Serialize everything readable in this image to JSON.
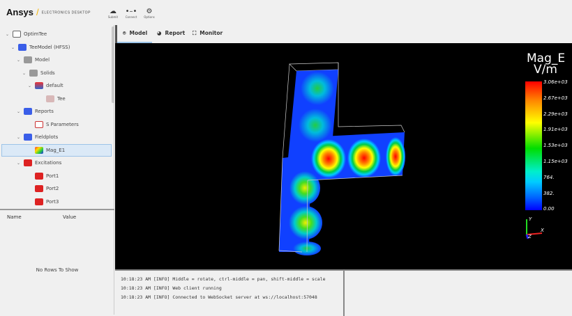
{
  "header": {
    "brand": "Ansys",
    "product": "ELECTRONICS DESKTOP",
    "toolbar": [
      {
        "label": "Submit",
        "icon": "cloud-icon"
      },
      {
        "label": "Connect",
        "icon": "connect-icon"
      },
      {
        "label": "Options",
        "icon": "gear-icon"
      }
    ]
  },
  "tree": [
    {
      "label": "OptimTee",
      "icon": "folder-icon",
      "expanded": true
    },
    {
      "label": "TeeModel (HFSS)",
      "icon": "hfss-icon",
      "expanded": true
    },
    {
      "label": "Model",
      "icon": "model-icon",
      "expanded": true
    },
    {
      "label": "Solids",
      "icon": "solids-icon",
      "expanded": true
    },
    {
      "label": "default",
      "icon": "material-icon",
      "expanded": true
    },
    {
      "label": "Tee",
      "icon": "solid-icon"
    },
    {
      "label": "Reports",
      "icon": "reports-icon",
      "expanded": true
    },
    {
      "label": "S Parameters",
      "icon": "chart-icon"
    },
    {
      "label": "Fieldplots",
      "icon": "fieldplots-icon",
      "expanded": true
    },
    {
      "label": "Mag_E1",
      "icon": "fieldplot-icon",
      "selected": true
    },
    {
      "label": "Excitations",
      "icon": "excitations-icon",
      "expanded": true
    },
    {
      "label": "Port1",
      "icon": "port-icon"
    },
    {
      "label": "Port2",
      "icon": "port-icon"
    },
    {
      "label": "Port3",
      "icon": "port-icon"
    }
  ],
  "properties": {
    "columns": [
      "Name",
      "Value"
    ],
    "empty": "No Rows To Show"
  },
  "tabs": [
    {
      "label": "Model",
      "active": true
    },
    {
      "label": "Report"
    },
    {
      "label": "Monitor"
    }
  ],
  "viewport": {
    "legend_title": "Mag_E",
    "legend_unit": "V/m",
    "legend_ticks": [
      "3.06e+03",
      "2.67e+03",
      "2.29e+03",
      "1.91e+03",
      "1.53e+03",
      "1.15e+03",
      "764.",
      "382.",
      "0.00"
    ],
    "axes": {
      "x": "X",
      "y": "Y",
      "z": "Z"
    }
  },
  "console": [
    "10:18:23 AM [INFO] Middle = rotate, ctrl-middle = pan, shift-middle = scale",
    "10:18:23 AM [INFO] Web client running",
    "10:18:23 AM [INFO] Connected to WebSocket server at ws://localhost:57048"
  ]
}
